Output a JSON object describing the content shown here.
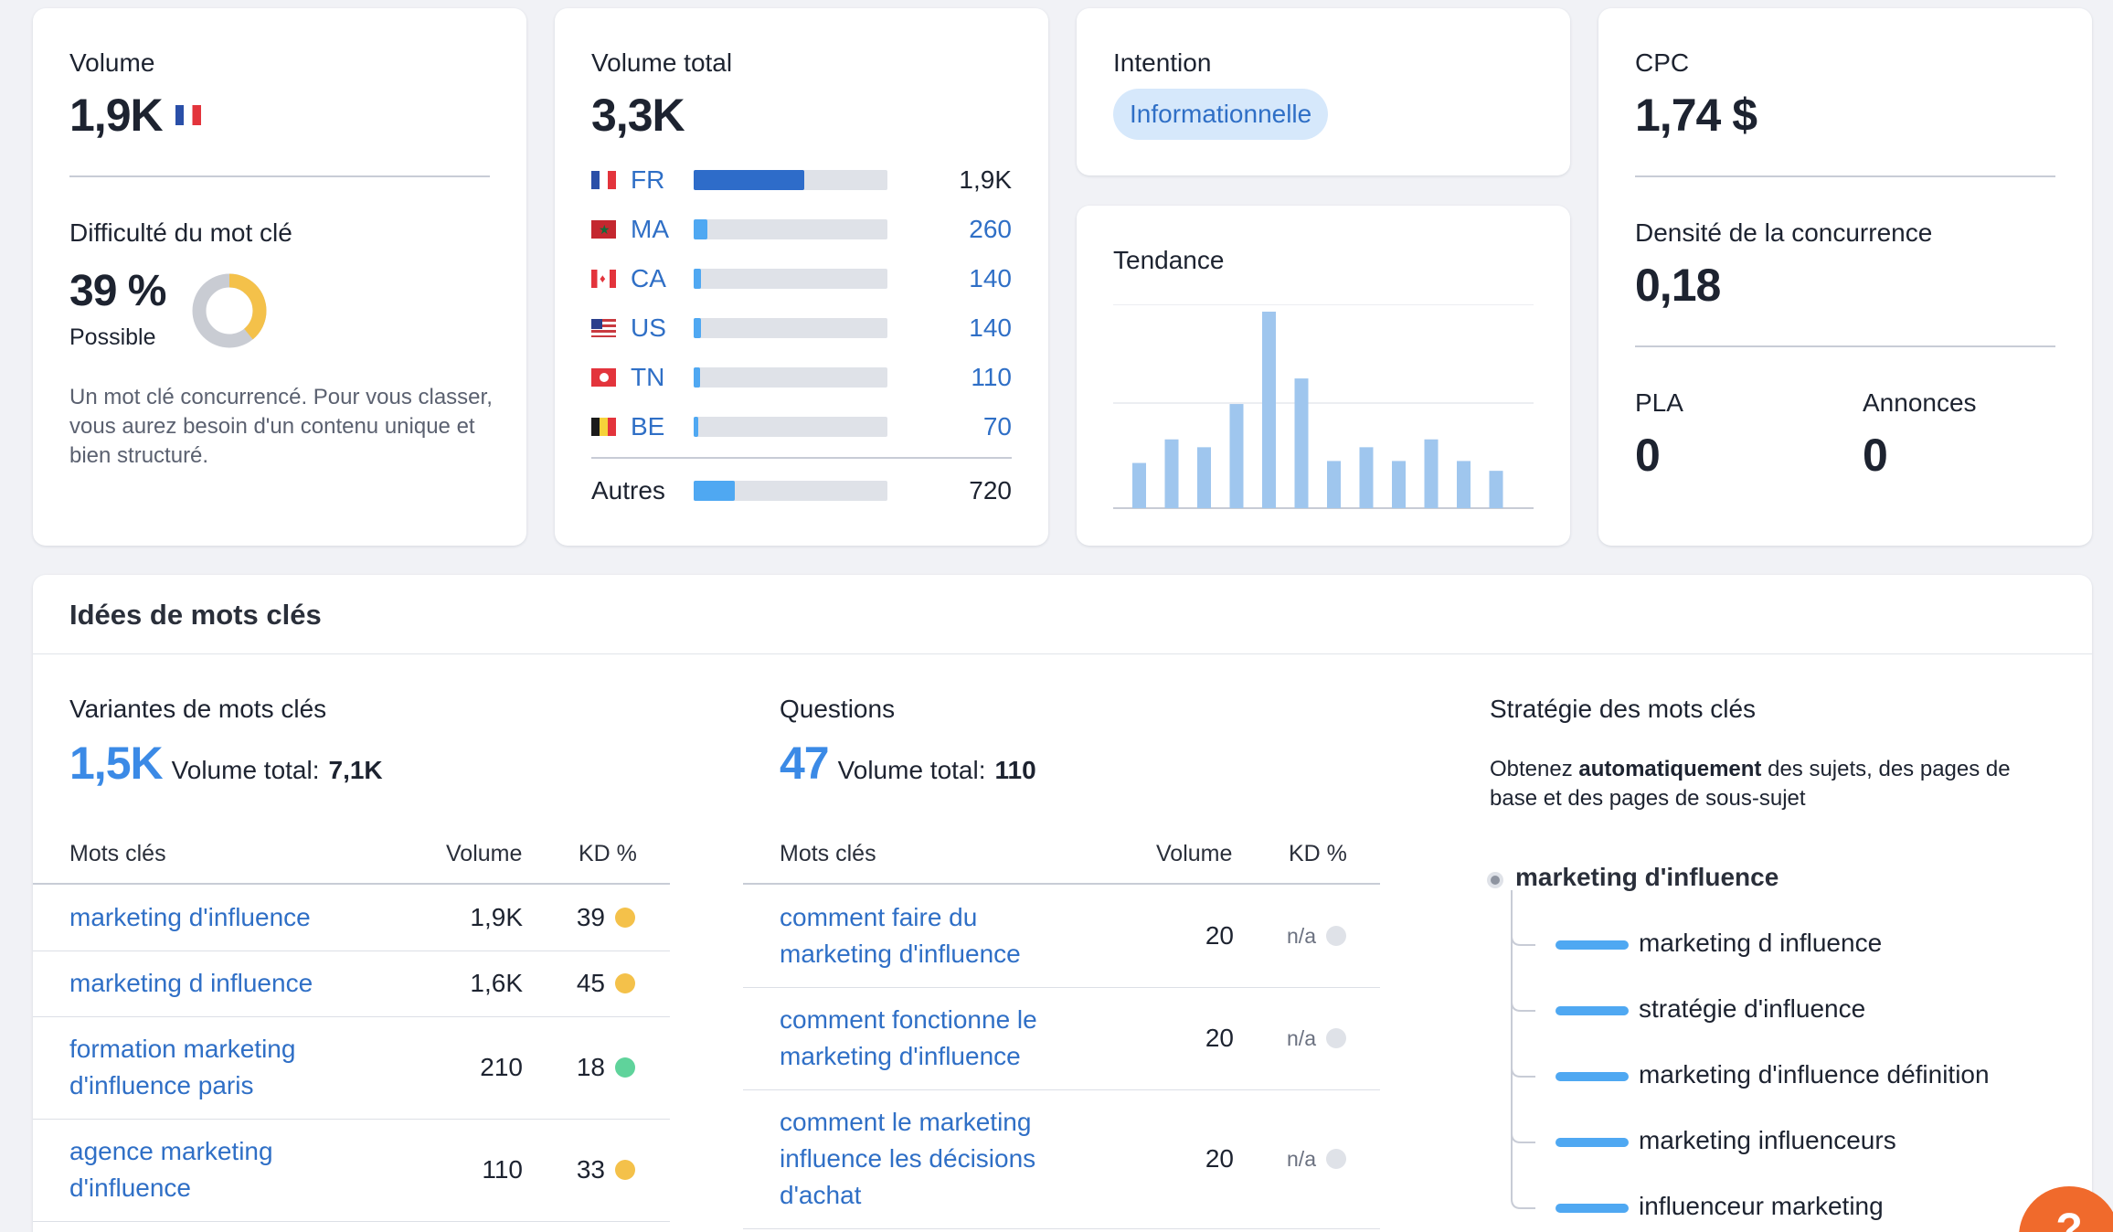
{
  "volume": {
    "label": "Volume",
    "value": "1,9K",
    "flag": "fr-flag"
  },
  "difficulty": {
    "label": "Difficulté du mot clé",
    "value": "39 %",
    "level": "Possible",
    "percent": 39,
    "description": "Un mot clé concurrencé. Pour vous classer, vous aurez besoin d'un contenu unique et bien structuré.",
    "color": "#f4c14a"
  },
  "total_volume": {
    "label": "Volume total",
    "value": "3,3K",
    "countries": [
      {
        "code": "FR",
        "flag": "fr-flag",
        "value": "1,9K",
        "share": 0.57
      },
      {
        "code": "MA",
        "flag": "ma-flag",
        "value": "260",
        "share": 0.07
      },
      {
        "code": "CA",
        "flag": "ca-flag",
        "value": "140",
        "share": 0.04
      },
      {
        "code": "US",
        "flag": "us-flag",
        "value": "140",
        "share": 0.04
      },
      {
        "code": "TN",
        "flag": "tn-flag",
        "value": "110",
        "share": 0.035
      },
      {
        "code": "BE",
        "flag": "be-flag",
        "value": "70",
        "share": 0.025
      }
    ],
    "others": {
      "label": "Autres",
      "value": "720",
      "share": 0.21
    }
  },
  "intent": {
    "label": "Intention",
    "badge": "Informationnelle"
  },
  "trend": {
    "label": "Tendance",
    "values": [
      23,
      35,
      31,
      53,
      100,
      66,
      24,
      31,
      24,
      35,
      24,
      19
    ]
  },
  "cpc": {
    "label": "CPC",
    "value": "1,74 $",
    "competition_label": "Densité de la concurrence",
    "competition_value": "0,18",
    "pla_label": "PLA",
    "pla_value": "0",
    "ads_label": "Annonces",
    "ads_value": "0"
  },
  "ideas": {
    "title": "Idées de mots clés",
    "variants": {
      "label": "Variantes de mots clés",
      "count": "1,5K",
      "total_prefix": "Volume total:",
      "total": "7,1K",
      "col_keywords": "Mots clés",
      "col_volume": "Volume",
      "col_kd": "KD %",
      "rows": [
        {
          "l1": "marketing d'influence",
          "l2": "",
          "volume": "1,9K",
          "kd": "39",
          "color": "#f4c14a"
        },
        {
          "l1": "marketing d influence",
          "l2": "",
          "volume": "1,6K",
          "kd": "45",
          "color": "#f4c14a"
        },
        {
          "l1": "formation marketing",
          "l2": "d'influence paris",
          "volume": "210",
          "kd": "18",
          "color": "#5fd39b"
        },
        {
          "l1": "agence marketing",
          "l2": "d'influence",
          "volume": "110",
          "kd": "33",
          "color": "#f4c14a"
        }
      ]
    },
    "questions": {
      "label": "Questions",
      "count": "47",
      "total_prefix": "Volume total:",
      "total": "110",
      "col_keywords": "Mots clés",
      "col_volume": "Volume",
      "col_kd": "KD %",
      "rows": [
        {
          "l1": "comment faire du",
          "l2": "marketing d'influence",
          "l3": "",
          "volume": "20",
          "kd": "n/a"
        },
        {
          "l1": "comment fonctionne le",
          "l2": "marketing d'influence",
          "l3": "",
          "volume": "20",
          "kd": "n/a"
        },
        {
          "l1": "comment le marketing",
          "l2": "influence les décisions",
          "l3": "d'achat",
          "volume": "20",
          "kd": "n/a"
        }
      ]
    },
    "strategy": {
      "label": "Stratégie des mots clés",
      "desc_pre": "Obtenez ",
      "desc_bold": "automatiquement",
      "desc_post": " des sujets, des pages de",
      "desc_line2": "base et des pages de sous-sujet",
      "root": "marketing d'influence",
      "items": [
        "marketing d influence",
        "stratégie d'influence",
        "marketing d'influence définition",
        "marketing influenceurs",
        "influenceur marketing"
      ]
    }
  },
  "help_button": {
    "label": "?",
    "color": "#f06a2c"
  }
}
